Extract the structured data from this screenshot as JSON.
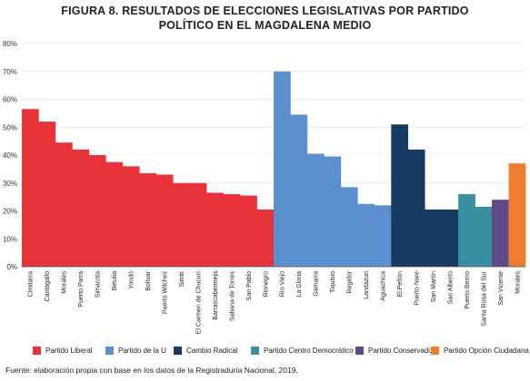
{
  "title_line1": "FIGURA 8. RESULTADOS DE ELECCIONES LEGISLATIVAS POR PARTIDO",
  "title_line2": "POLÍTICO EN EL MAGDALENA MEDIO",
  "source": "Fuente: elaboración propia con base en los datos de la Registraduría Nacional, 2019.",
  "chart_data": {
    "type": "bar",
    "ylim": [
      0,
      80
    ],
    "yticks": [
      "0%",
      "10%",
      "20%",
      "30%",
      "40%",
      "50%",
      "60%",
      "70%",
      "80%"
    ],
    "legend_position": "bottom",
    "series": [
      {
        "name": "Partido Liberal",
        "color": "#e8323a",
        "categories": [
          "Cimitarra",
          "Cantagallo",
          "Morales",
          "Puerto Parra",
          "Simacota",
          "Betulia",
          "Yondó",
          "Bolívar",
          "Puerto Wilches",
          "Simití",
          "El Carmen de Chucurí",
          "Barrancabermeja",
          "Sabana de Torres",
          "San Pablo",
          "Rionegro"
        ],
        "values": [
          56.5,
          52,
          44.5,
          42,
          40,
          37.5,
          36,
          33.5,
          33,
          30,
          30,
          26.5,
          26,
          25.5,
          20.5
        ]
      },
      {
        "name": "Partido de la U",
        "color": "#5b8fcf",
        "categories": [
          "Río Viejo",
          "La Gloria",
          "Gamarra",
          "Tiquisio",
          "Regidor",
          "Landázuri",
          "Aguachica"
        ],
        "values": [
          70,
          54.5,
          40.5,
          39.5,
          28.5,
          22.5,
          22
        ]
      },
      {
        "name": "Cambio Radical",
        "color": "#163a62",
        "categories": [
          "El Peñón",
          "Puerto Nare",
          "San Martín",
          "San Alberto"
        ],
        "values": [
          51,
          42,
          20.5,
          20.5
        ]
      },
      {
        "name": "Partido Centro Democrático",
        "color": "#3a8ea1",
        "categories": [
          "Puerto Berrío",
          "Santa Rosa del Sur"
        ],
        "values": [
          26,
          21.5
        ]
      },
      {
        "name": "Partido Conservador",
        "color": "#5e4a8a",
        "categories": [
          "San Vicente"
        ],
        "values": [
          24
        ]
      },
      {
        "name": "Partido Opción Ciudadana",
        "color": "#ef7d2e",
        "categories": [
          "Morales"
        ],
        "values": [
          37
        ]
      }
    ]
  }
}
